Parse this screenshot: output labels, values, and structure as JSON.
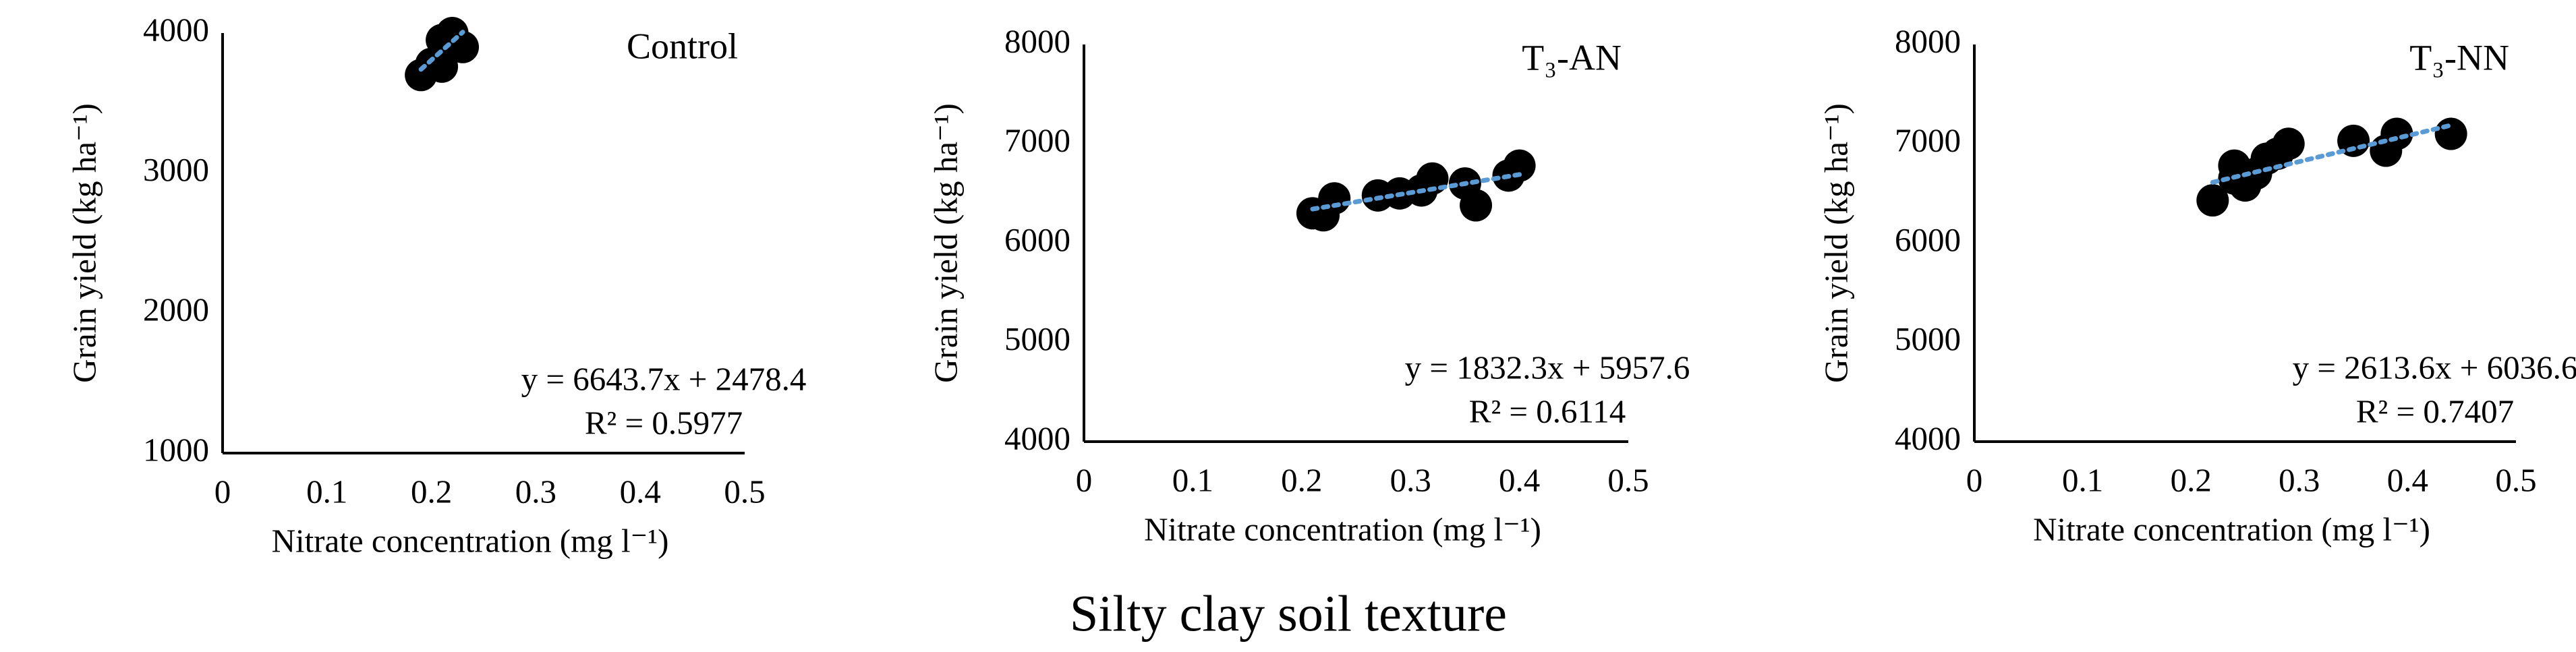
{
  "chart_data": [
    {
      "type": "scatter",
      "title": "Control",
      "x_label": "Nitrate concentration (mg l⁻¹)",
      "y_label": "Grain yield (kg ha⁻¹)",
      "color": "#000000",
      "x": [
        0.19,
        0.2,
        0.21,
        0.21,
        0.22,
        0.23
      ],
      "values": [
        3700,
        3780,
        3760,
        3950,
        4000,
        3900
      ],
      "xlim": [
        0,
        0.5
      ],
      "xticks": [
        0,
        0.1,
        0.2,
        0.3,
        0.4,
        0.5
      ],
      "ylim": [
        1000,
        4000
      ],
      "yticks": [
        1000,
        2000,
        3000,
        4000
      ],
      "trendline": {
        "color": "#5b9bd5",
        "slope": 6643.7,
        "intercept": 2478.4,
        "equation": "y = 6643.7x + 2478.4",
        "r_squared": "R² = 0.5977"
      }
    },
    {
      "type": "scatter",
      "title": "T₃-AN",
      "x_label": "Nitrate concentration (mg l⁻¹)",
      "y_label": "Grain yield (kg ha⁻¹)",
      "color": "#000000",
      "x": [
        0.21,
        0.22,
        0.23,
        0.27,
        0.29,
        0.31,
        0.32,
        0.35,
        0.36,
        0.39,
        0.4
      ],
      "values": [
        6300,
        6280,
        6450,
        6480,
        6500,
        6530,
        6650,
        6600,
        6380,
        6680,
        6780
      ],
      "xlim": [
        0,
        0.5
      ],
      "xticks": [
        0,
        0.1,
        0.2,
        0.3,
        0.4,
        0.5
      ],
      "ylim": [
        4000,
        8000
      ],
      "yticks": [
        4000,
        5000,
        6000,
        7000,
        8000
      ],
      "trendline": {
        "color": "#5b9bd5",
        "slope": 1832.3,
        "intercept": 5957.6,
        "equation": "y = 1832.3x + 5957.6",
        "r_squared": "R² = 0.6114"
      }
    },
    {
      "type": "scatter",
      "title": "T₃-NN",
      "x_label": "Nitrate concentration (mg l⁻¹)",
      "y_label": "Grain yield (kg ha⁻¹)",
      "color": "#000000",
      "x": [
        0.22,
        0.24,
        0.24,
        0.25,
        0.26,
        0.27,
        0.28,
        0.29,
        0.35,
        0.38,
        0.39,
        0.44
      ],
      "values": [
        6430,
        6650,
        6780,
        6580,
        6700,
        6850,
        6900,
        7000,
        7030,
        6930,
        7100,
        7100
      ],
      "xlim": [
        0,
        0.5
      ],
      "xticks": [
        0,
        0.1,
        0.2,
        0.3,
        0.4,
        0.5
      ],
      "ylim": [
        4000,
        8000
      ],
      "yticks": [
        4000,
        5000,
        6000,
        7000,
        8000
      ],
      "trendline": {
        "color": "#5b9bd5",
        "slope": 2613.6,
        "intercept": 6036.6,
        "equation": "y = 2613.6x + 6036.6",
        "r_squared": "R² = 0.7407"
      }
    }
  ],
  "caption": "Silty clay soil texture"
}
